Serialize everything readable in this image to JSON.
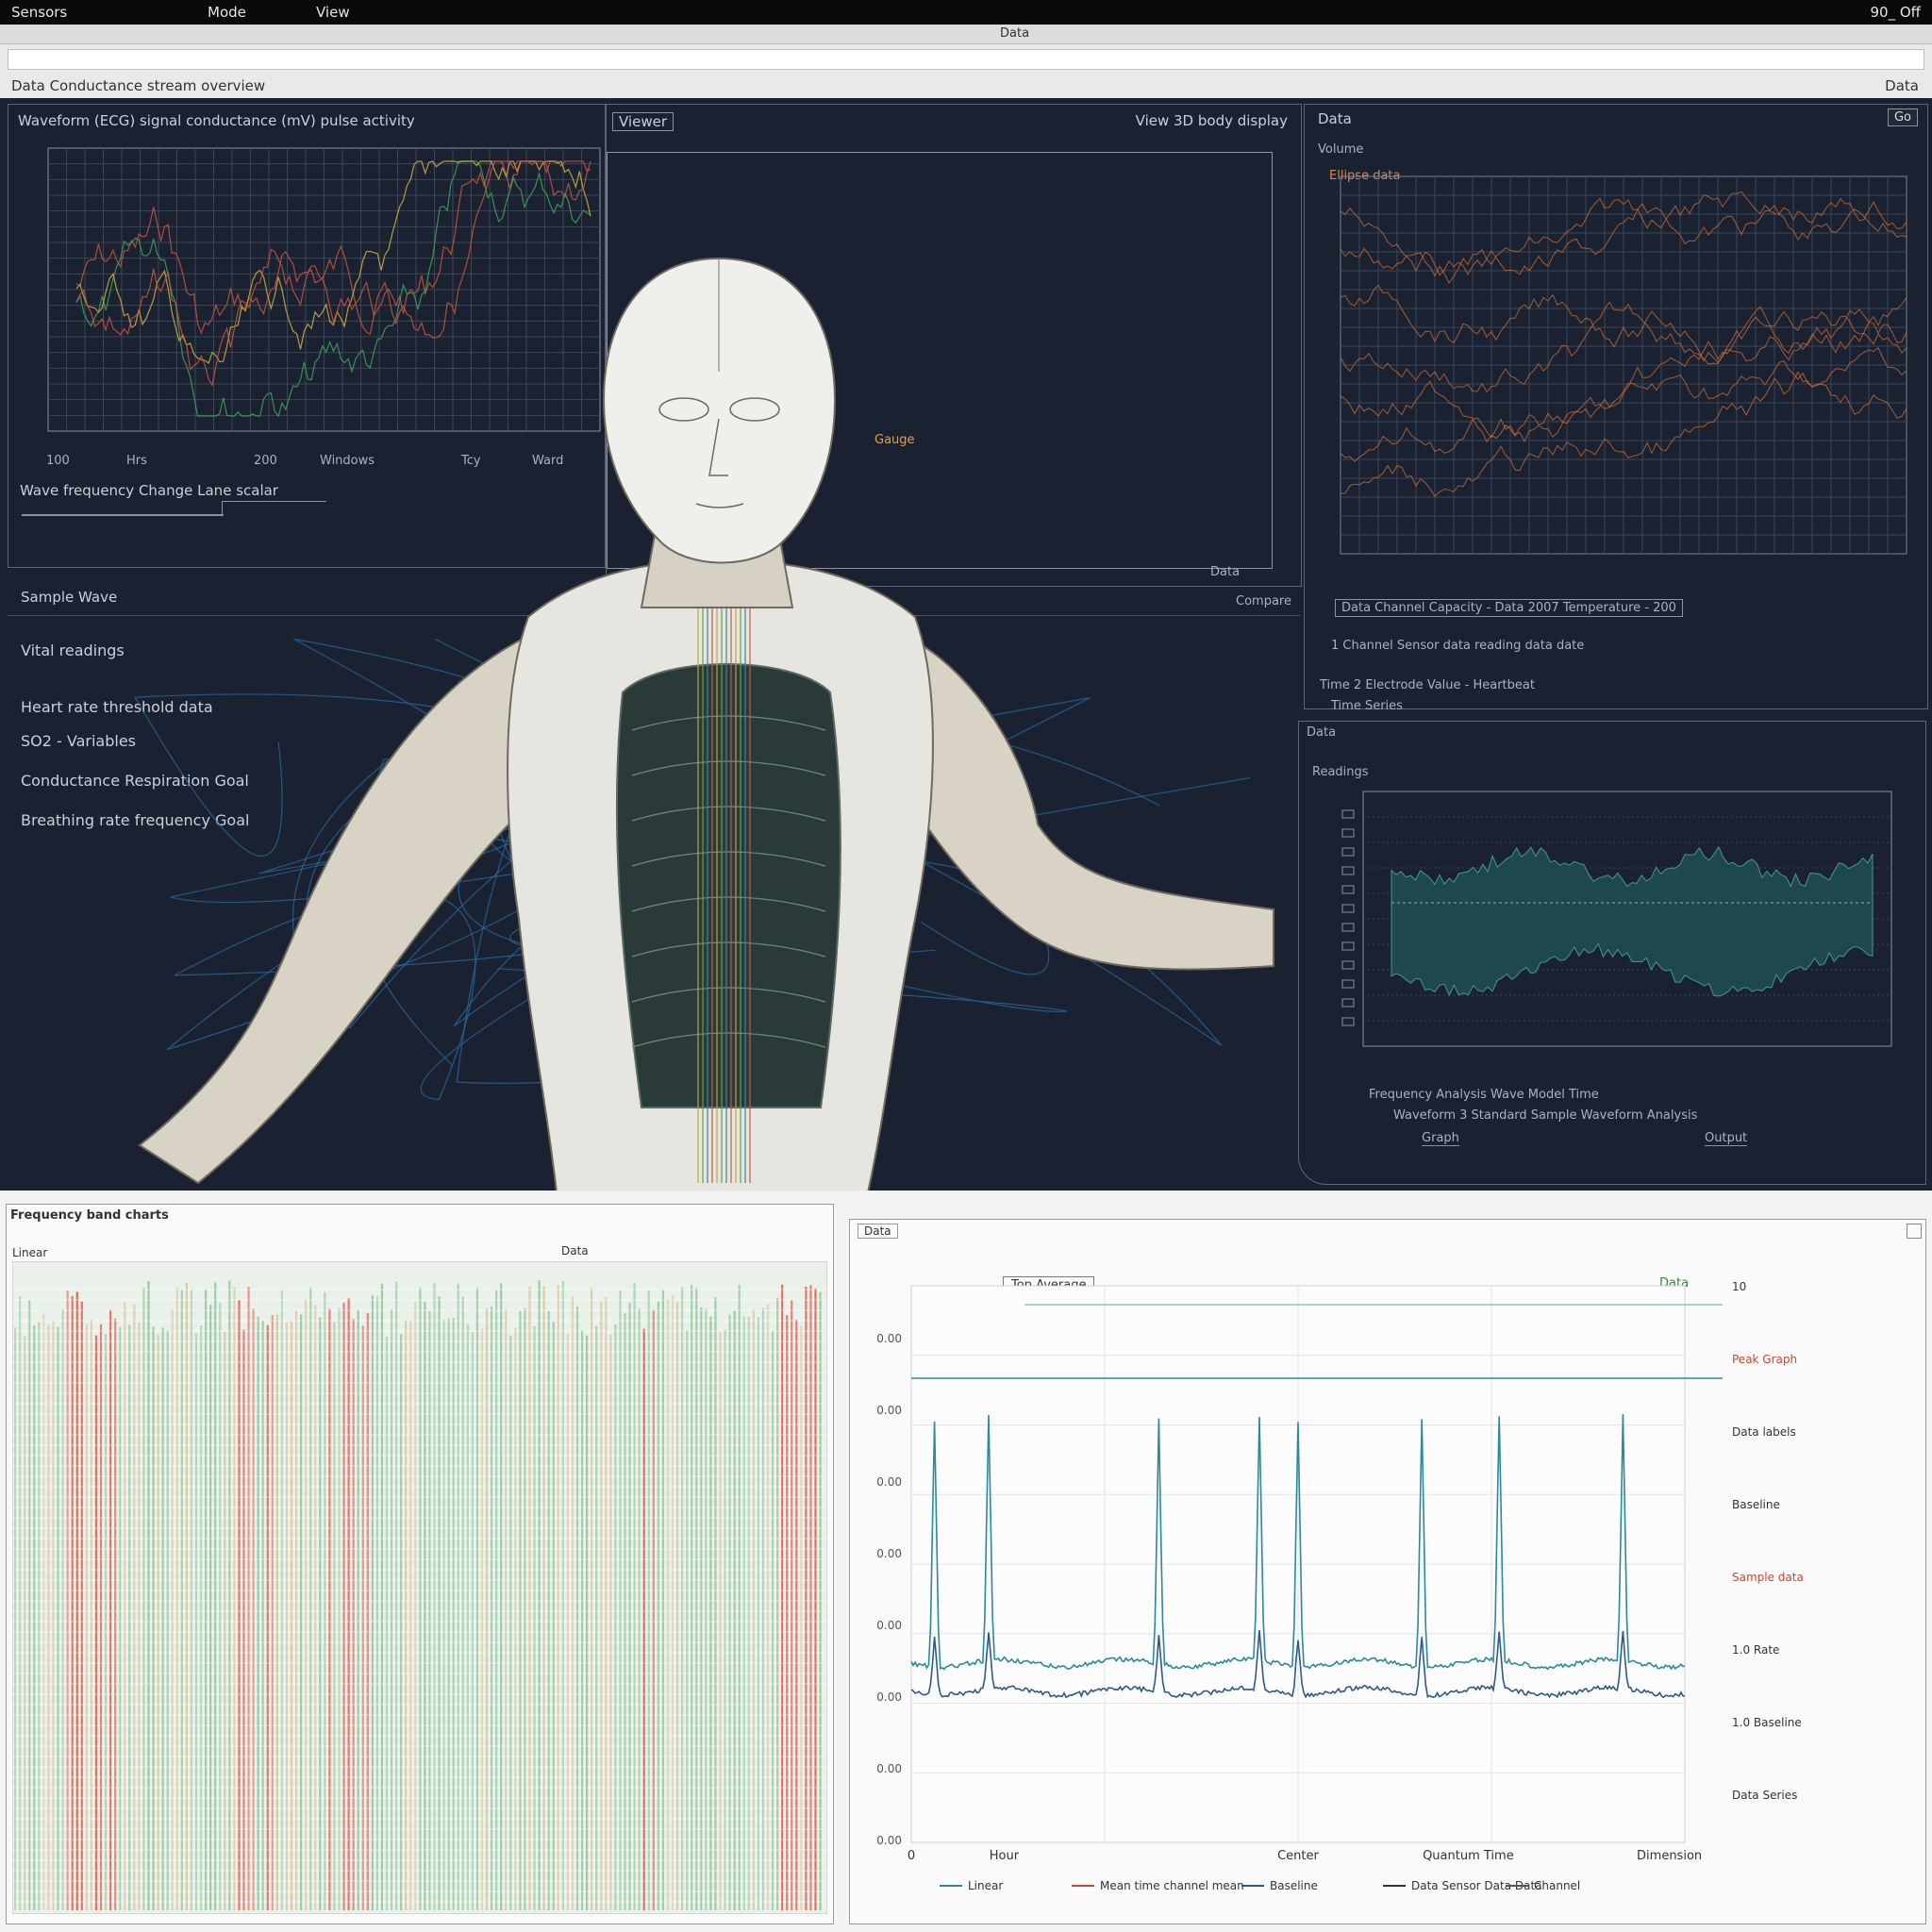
{
  "window": {
    "menu": [
      "Sensors",
      "Mode",
      "View"
    ],
    "status": "90_ Off"
  },
  "toolbar": {
    "tab": "Data",
    "breadcrumb": "Data Conductance stream overview",
    "right": "Data"
  },
  "top_left_panel": {
    "title": "Waveform (ECG) signal conductance (mV) pulse activity",
    "x_ticks": [
      "100",
      "Hrs",
      "200",
      "Windows",
      "Tcy",
      "Ward"
    ],
    "caption": "Wave frequency Change Lane scalar",
    "section": "Sample Wave"
  },
  "center_panel": {
    "tag": "Viewer",
    "header": "View 3D body display",
    "marker": "Gauge",
    "footer": "Data",
    "right": "Compare"
  },
  "left_info": {
    "heading": "Vital readings",
    "lines": [
      "Heart rate threshold data",
      "SO2 - Variables",
      "Conductance Respiration Goal",
      "Breathing rate frequency Goal"
    ]
  },
  "top_right_panel": {
    "title": "Data",
    "button": "Go",
    "sub": "Volume",
    "legend": "Ellipse data",
    "caption": "Data Channel Capacity - Data 2007 Temperature - 200",
    "lines": [
      "1 Channel Sensor data reading data date",
      "Time 2 Electrode Value - Heartbeat",
      "Time Series"
    ]
  },
  "mid_right_panel": {
    "title": "Data",
    "sub": "Readings",
    "caption": "Frequency Analysis Wave Model Time",
    "caption2": "Waveform 3 Standard Sample Waveform Analysis",
    "button_a": "Graph",
    "button_b": "Output"
  },
  "bottom_left_panel": {
    "title": "Frequency band charts",
    "left_label": "Linear",
    "right_label": "Data"
  },
  "bottom_right_panel": {
    "tab": "Data",
    "legend_box": "Top Average",
    "top_right_label": "Data",
    "y_labels": [
      "0.00",
      "0.00",
      "0.00",
      "0.00",
      "0.00",
      "0.00",
      "0.00",
      "0.00"
    ],
    "right_labels": [
      "10",
      "Peak Graph",
      "Data labels",
      "Baseline",
      "Sample data",
      "1.0 Rate",
      "1.0 Baseline",
      "Data Series"
    ],
    "x_labels": [
      "0",
      "Hour",
      "Center",
      "Quantum Time",
      "Dimension"
    ],
    "legend": [
      "Linear",
      "Mean time channel mean",
      "Baseline",
      "Data Sensor Data Data",
      "Channel"
    ]
  },
  "colors": {
    "dark_bg": "#1a2232",
    "grid_dark": "#3c4657",
    "line_red": "#c8553f",
    "line_green": "#3fa35a",
    "line_teal": "#1f6f80",
    "fill_teal": "#1e4d52",
    "orange_trace": "#c66a33",
    "heat_red": "#e35a4a",
    "heat_green": "#8fc59a",
    "ecg_blue": "#2c5a8c",
    "ecg_teal": "#2b8a9a"
  }
}
